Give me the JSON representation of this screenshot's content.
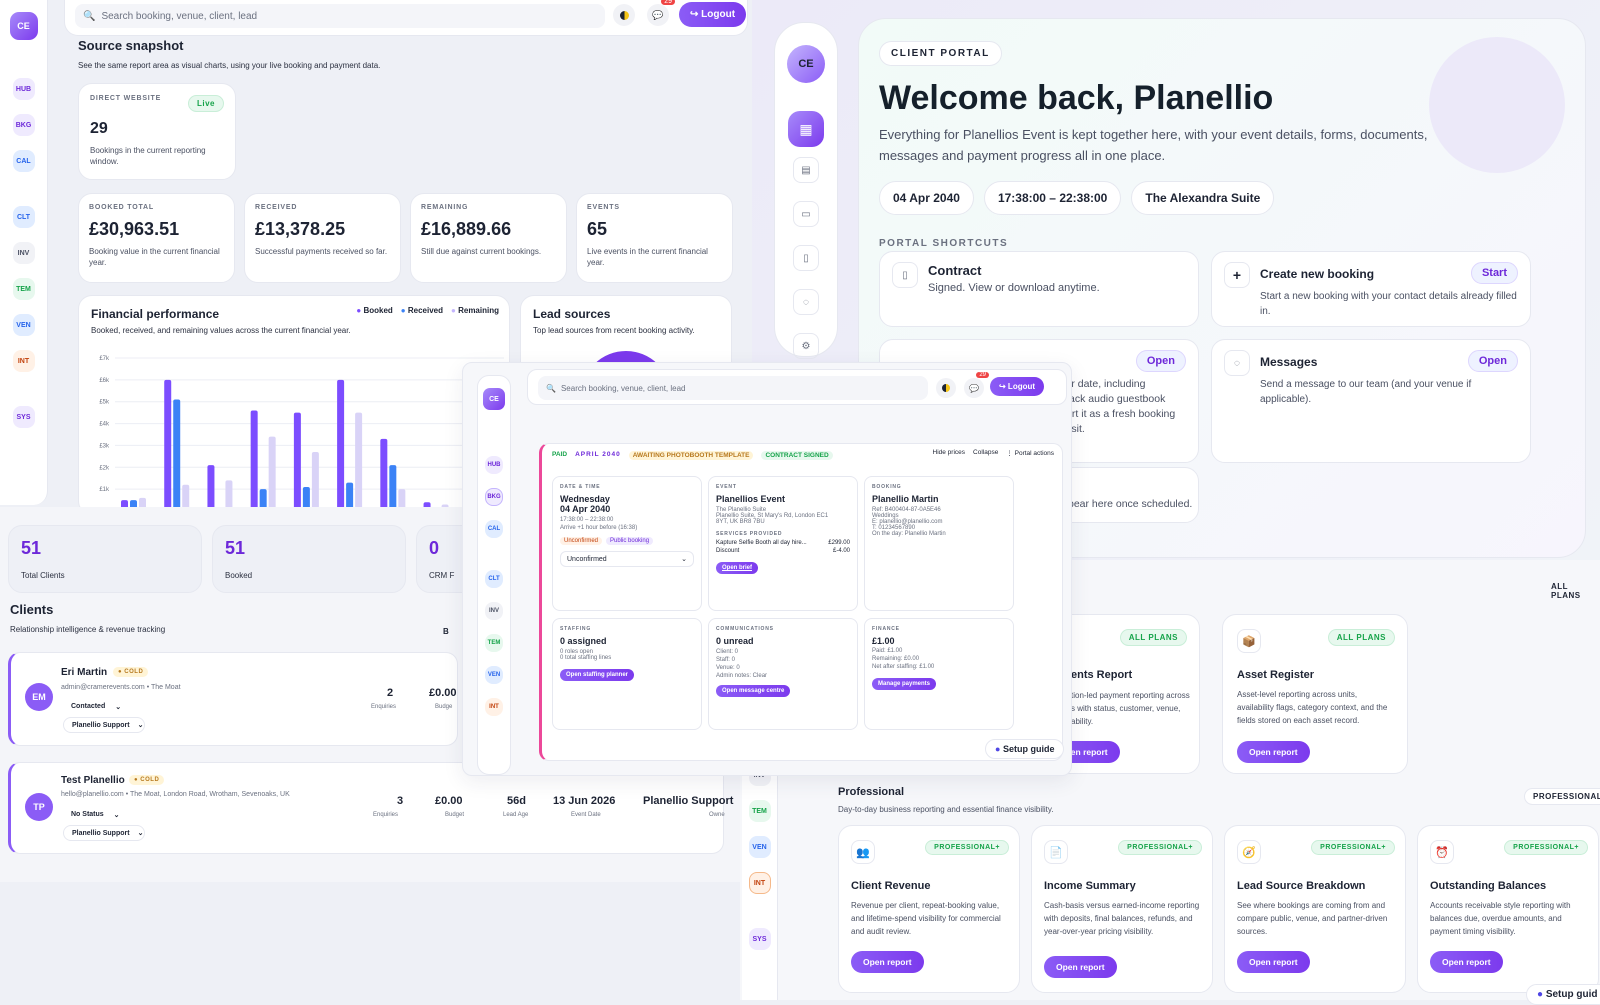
{
  "colors": {
    "accent": "#7c3aed",
    "booked": "#7c4dff",
    "received": "#3b82f6",
    "remaining": "#d9d3f7"
  },
  "topbar": {
    "search_placeholder": "Search booking, venue, client, lead",
    "notif_count": "29",
    "logout": "↪ Logout",
    "avatar": "CE"
  },
  "left_nav": [
    "HUB",
    "BKG",
    "CAL",
    "CLT",
    "INV",
    "TEM",
    "VEN",
    "INT",
    "SYS"
  ],
  "snapshot": {
    "title": "Source snapshot",
    "subtitle": "See the same report area as visual charts, using your live booking and payment data.",
    "direct": {
      "label": "DIRECT WEBSITE",
      "badge": "Live",
      "value": "29",
      "desc": "Bookings in the current reporting window."
    },
    "stats": [
      {
        "label": "BOOKED TOTAL",
        "value": "£30,963.51",
        "desc": "Booking value in the current financial year."
      },
      {
        "label": "RECEIVED",
        "value": "£13,378.25",
        "desc": "Successful payments received so far."
      },
      {
        "label": "REMAINING",
        "value": "£16,889.66",
        "desc": "Still due against current bookings."
      },
      {
        "label": "EVENTS",
        "value": "65",
        "desc": "Live events in the current financial year."
      }
    ]
  },
  "finance": {
    "title": "Financial performance",
    "subtitle": "Booked, received, and remaining values across the current financial year.",
    "legend": [
      "Booked",
      "Received",
      "Remaining"
    ]
  },
  "chart_data": {
    "type": "bar",
    "title": "Financial performance",
    "yticks": [
      "£7k",
      "£6k",
      "£5k",
      "£4k",
      "£3k",
      "£2k",
      "£1k"
    ],
    "ylim": [
      0,
      7000
    ],
    "series": [
      {
        "name": "Booked",
        "values": [
          500,
          6000,
          2100,
          4600,
          4500,
          6000,
          3300,
          400,
          1300
        ]
      },
      {
        "name": "Received",
        "values": [
          500,
          5100,
          0,
          1000,
          1100,
          1300,
          2100,
          0,
          0
        ]
      },
      {
        "name": "Remaining",
        "values": [
          600,
          1200,
          1400,
          3400,
          2700,
          4500,
          1000,
          300,
          1100
        ]
      }
    ]
  },
  "lead": {
    "title": "Lead sources",
    "subtitle": "Top lead sources from recent booking activity."
  },
  "client_stats": [
    {
      "value": "51",
      "label": "Total Clients"
    },
    {
      "value": "51",
      "label": "Booked"
    },
    {
      "value": "0",
      "label": "CRM F"
    }
  ],
  "clients": {
    "title": "Clients",
    "subtitle": "Relationship intelligence & revenue tracking",
    "cut_label": "B",
    "rows": [
      {
        "initials": "EM",
        "name": "Eri Martin",
        "badge": "● COLD",
        "contact": "admin@cramerevents.com • The Moat",
        "status": "Contacted",
        "owner": "Planellio Support",
        "enquiries": "2",
        "enquiries_label": "Enquiries",
        "budget": "£0.00",
        "budget_label": "Budge"
      },
      {
        "initials": "TP",
        "name": "Test Planellio",
        "badge": "● COLD",
        "contact": "hello@planellio.com • The Moat, London Road, Wrotham, Sevenoaks, UK",
        "status": "No Status",
        "owner": "Planellio Support",
        "enquiries": "3",
        "enquiries_label": "Enquiries",
        "budget": "£0.00",
        "budget_label": "Budget",
        "lead_age": "56d",
        "lead_age_label": "Lead Age",
        "event_date": "13 Jun 2026",
        "event_date_label": "Event Date",
        "owner_name": "Planellio Support",
        "owner_label": "Owne"
      }
    ]
  },
  "portal": {
    "badge": "CLIENT PORTAL",
    "title": "Welcome back, Planellio",
    "desc": "Everything for Planellios Event is kept together here, with your event details, forms, documents, messages and payment progress all in one place.",
    "chips": [
      "04 Apr 2040",
      "17:38:00 – 22:38:00",
      "The Alexandra Suite"
    ],
    "shortcuts_label": "PORTAL SHORTCUTS",
    "contract": {
      "title": "Contract",
      "desc": "Signed. View or download anytime."
    },
    "create": {
      "title": "Create new booking",
      "btn": "Start",
      "desc": "Start a new booking with your contact details already filled in."
    },
    "open_btn": "Open",
    "partial": [
      "r your date, including",
      "n. Black audio guestbook",
      "ill start it as a fresh booking",
      "deposit."
    ],
    "messages": {
      "title": "Messages",
      "btn": "Open",
      "desc": "Send a message to our team (and your venue if applicable)."
    },
    "appear": "pear here once scheduled."
  },
  "reports": {
    "all_plans": "ALL PLANS",
    "partial_title": "ents Report",
    "partial_desc": [
      "tion-led payment reporting across",
      "s with status, customer, venue,",
      "ability."
    ],
    "asset": {
      "badge": "ALL PLANS",
      "title": "Asset Register",
      "desc": "Asset-level reporting across units, availability flags, category context, and the fields stored on each asset record.",
      "btn": "Open report"
    },
    "open_partial": "Open report",
    "pro_title": "Professional",
    "pro_sub": "Day-to-day business reporting and essential finance visibility.",
    "pro_tag": "PROFESSIONAL",
    "cards": [
      {
        "badge": "PROFESSIONAL+",
        "icon": "👥",
        "title": "Client Revenue",
        "desc": "Revenue per client, repeat-booking value, and lifetime-spend visibility for commercial and audit review.",
        "btn": "Open report"
      },
      {
        "badge": "PROFESSIONAL+",
        "icon": "📄",
        "title": "Income Summary",
        "desc": "Cash-basis versus earned-income reporting with deposits, final balances, refunds, and year-over-year pricing visibility.",
        "btn": "Open report"
      },
      {
        "badge": "PROFESSIONAL+",
        "icon": "🧭",
        "title": "Lead Source Breakdown",
        "desc": "See where bookings are coming from and compare public, venue, and partner-driven sources.",
        "btn": "Open report"
      },
      {
        "badge": "PROFESSIONAL+",
        "icon": "⏰",
        "title": "Outstanding Balances",
        "desc": "Accounts receivable style reporting with balances due, overdue amounts, and payment timing visibility.",
        "btn": "Open report"
      }
    ],
    "setup": "Setup guid"
  },
  "booking": {
    "tags": [
      "PAID",
      "APRIL 2040",
      "AWAITING PHOTOBOOTH TEMPLATE",
      "CONTRACT SIGNED"
    ],
    "actions": [
      "Hide prices",
      "Collapse",
      "⋮ Portal actions"
    ],
    "datetime": {
      "label": "DATE & TIME",
      "day": "Wednesday",
      "date": "04 Apr 2040",
      "time": "17:38:00 – 22:38:00",
      "arrive": "Arrive +1 hour before (16:38)",
      "tags": [
        "Unconfirmed",
        "Public booking"
      ],
      "select": "Unconfirmed"
    },
    "event": {
      "label": "EVENT",
      "name": "Planellios Event",
      "lines": [
        "The Planellio Suite",
        "Planellio Suite, St Mary's Rd, London EC1",
        "8YT, UK BR8 7BU"
      ],
      "services_label": "SERVICES PROVIDED",
      "service": "Kapture Selfie Booth all day hire...",
      "service_price": "£299.00",
      "discount": "Discount",
      "discount_price": "£-4.00",
      "btn": "Open brief"
    },
    "booking": {
      "label": "BOOKING",
      "name": "Planellio Martin",
      "lines": [
        "Ref: B400404-87-0A5E46",
        "Weddings",
        "E: planellio@planellio.com",
        "T: 01234567890",
        "On the day: Planellio Martin"
      ]
    },
    "staffing": {
      "label": "STAFFING",
      "value": "0 assigned",
      "lines": [
        "0 roles open",
        "0 total staffing lines"
      ],
      "btn": "Open staffing planner"
    },
    "comms": {
      "label": "COMMUNICATIONS",
      "value": "0 unread",
      "lines": [
        "Client: 0",
        "Staff: 0",
        "Venue: 0",
        "Admin notes: Clear"
      ],
      "btn": "Open message centre"
    },
    "finance": {
      "label": "FINANCE",
      "value": "£1.00",
      "lines": [
        "Paid: £1.00",
        "Remaining: £0.00",
        "Net after staffing: £1.00"
      ],
      "btn": "Manage payments"
    },
    "setup": "Setup guide"
  }
}
